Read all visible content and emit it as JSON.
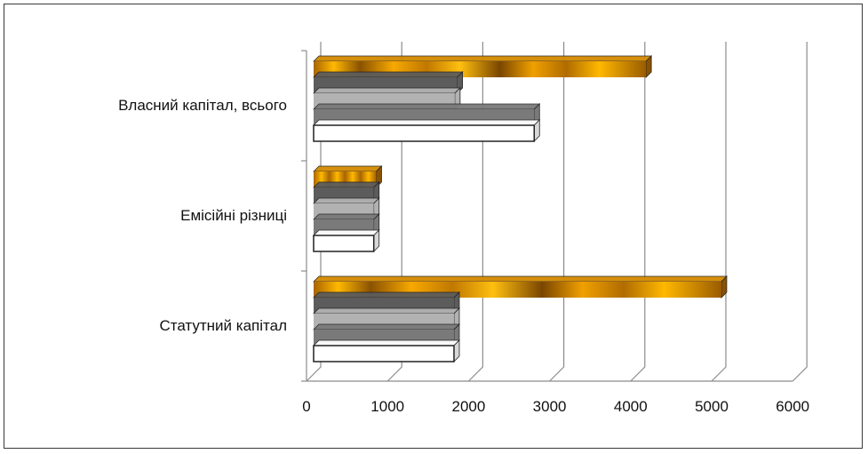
{
  "chart_data": {
    "type": "bar",
    "orientation": "horizontal",
    "style": "3d-clustered",
    "categories": [
      "Власний капітал, всього",
      "Емісійні різниці",
      "Статутний капітал"
    ],
    "series": [
      {
        "color": "#ffffff",
        "values": [
          2810,
          830,
          1820
        ]
      },
      {
        "color": "#7a7a7a",
        "values": [
          2810,
          830,
          1820
        ]
      },
      {
        "color": "#b2b2b2",
        "values": [
          1830,
          830,
          1820
        ]
      },
      {
        "color": "#5c5c5c",
        "values": [
          1860,
          830,
          1820
        ]
      },
      {
        "color": "#f2a900",
        "values": [
          4190,
          860,
          5120
        ]
      }
    ],
    "xticks": [
      "0",
      "1000",
      "2000",
      "3000",
      "4000",
      "5000",
      "6000"
    ],
    "xlim": [
      0,
      6000
    ],
    "grid": true,
    "legend": "none"
  }
}
